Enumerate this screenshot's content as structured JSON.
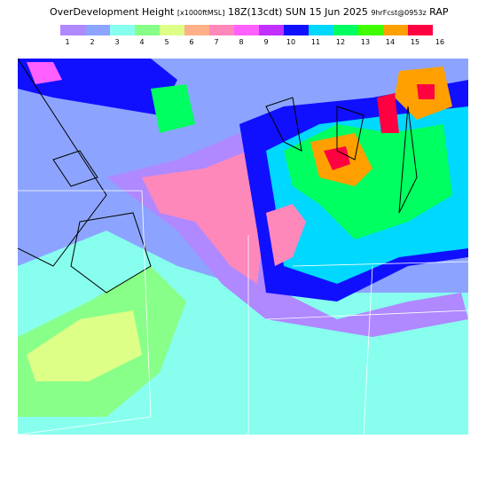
{
  "header": {
    "title": "OverDevelopment Height",
    "units": "[x1000ftMSL]",
    "valid": "18Z(13cdt) SUN 15 Jun 2025",
    "forecast": "9hrFcst@0953z",
    "model": "RAP"
  },
  "legend": {
    "colors": [
      "#b088ff",
      "#8ca4ff",
      "#88ffee",
      "#88ff88",
      "#ddff88",
      "#ffb088",
      "#ff88bb",
      "#ff60ff",
      "#c030ff",
      "#1010ff",
      "#00d8ff",
      "#00ff60",
      "#40ff00",
      "#ffa000",
      "#ff0040",
      "#ff00ff"
    ],
    "labels": [
      "1",
      "2",
      "3",
      "4",
      "5",
      "6",
      "7",
      "8",
      "9",
      "10",
      "11",
      "12",
      "13",
      "14",
      "15",
      "16"
    ]
  }
}
